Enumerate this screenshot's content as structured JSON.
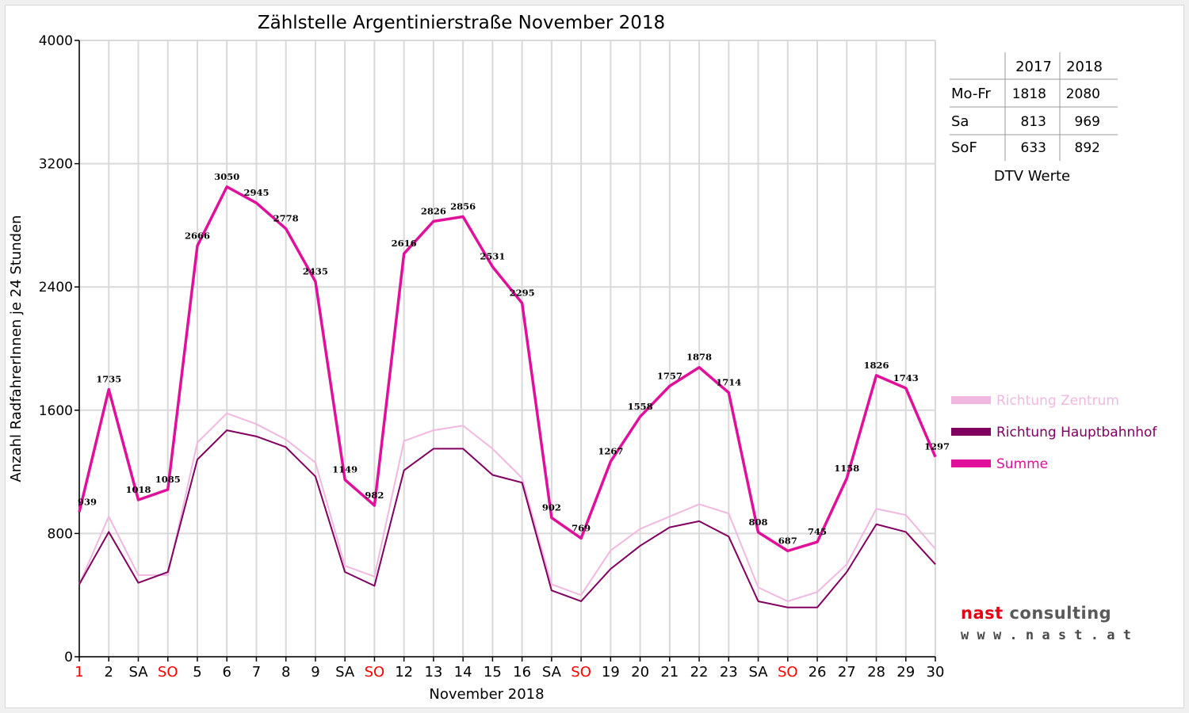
{
  "chart_data": {
    "type": "line",
    "title": "Zählstelle Argentinierstraße November 2018",
    "xlabel": "November 2018",
    "ylabel": "Anzahl RadfahrerInnen je 24 Stunden",
    "ylim": [
      0,
      4000
    ],
    "yticks": [
      0,
      800,
      1600,
      2400,
      3200,
      4000
    ],
    "grid": true,
    "legend_position": "right",
    "categories": [
      "1",
      "2",
      "SA",
      "SO",
      "5",
      "6",
      "7",
      "8",
      "9",
      "SA",
      "SO",
      "12",
      "13",
      "14",
      "15",
      "16",
      "SA",
      "SO",
      "19",
      "20",
      "21",
      "22",
      "23",
      "SA",
      "SO",
      "26",
      "27",
      "28",
      "29",
      "30"
    ],
    "highlight_categories": [
      0,
      3,
      10,
      17,
      24
    ],
    "series": [
      {
        "name": "Richtung Zentrum",
        "color": "#f0b8e0",
        "values": [
          470,
          910,
          530,
          530,
          1390,
          1580,
          1510,
          1410,
          1260,
          590,
          520,
          1400,
          1470,
          1500,
          1350,
          1160,
          470,
          400,
          690,
          830,
          910,
          990,
          930,
          450,
          360,
          420,
          600,
          960,
          920,
          700
        ]
      },
      {
        "name": "Richtung Hauptbahnhof",
        "color": "#800060",
        "values": [
          470,
          810,
          480,
          550,
          1280,
          1470,
          1430,
          1360,
          1170,
          550,
          460,
          1210,
          1350,
          1350,
          1180,
          1130,
          430,
          360,
          570,
          720,
          840,
          880,
          780,
          360,
          320,
          320,
          550,
          860,
          810,
          600
        ]
      },
      {
        "name": "Summe",
        "color": "#e0109a",
        "values": [
          939,
          1735,
          1018,
          1085,
          2666,
          3050,
          2945,
          2778,
          2435,
          1149,
          982,
          2616,
          2826,
          2856,
          2531,
          2295,
          902,
          769,
          1267,
          1558,
          1757,
          1878,
          1714,
          808,
          687,
          745,
          1158,
          1826,
          1743,
          1297
        ]
      }
    ]
  },
  "dtv_table": {
    "caption": "DTV Werte",
    "columns": [
      "",
      "2017",
      "2018"
    ],
    "rows": [
      [
        "Mo-Fr",
        "1818",
        "2080"
      ],
      [
        "Sa",
        "813",
        "969"
      ],
      [
        "SoF",
        "633",
        "892"
      ]
    ]
  },
  "logo": {
    "line1_part1": "nast",
    "line1_part2": " consulting",
    "line2": "w w w . n a s t . a t"
  }
}
